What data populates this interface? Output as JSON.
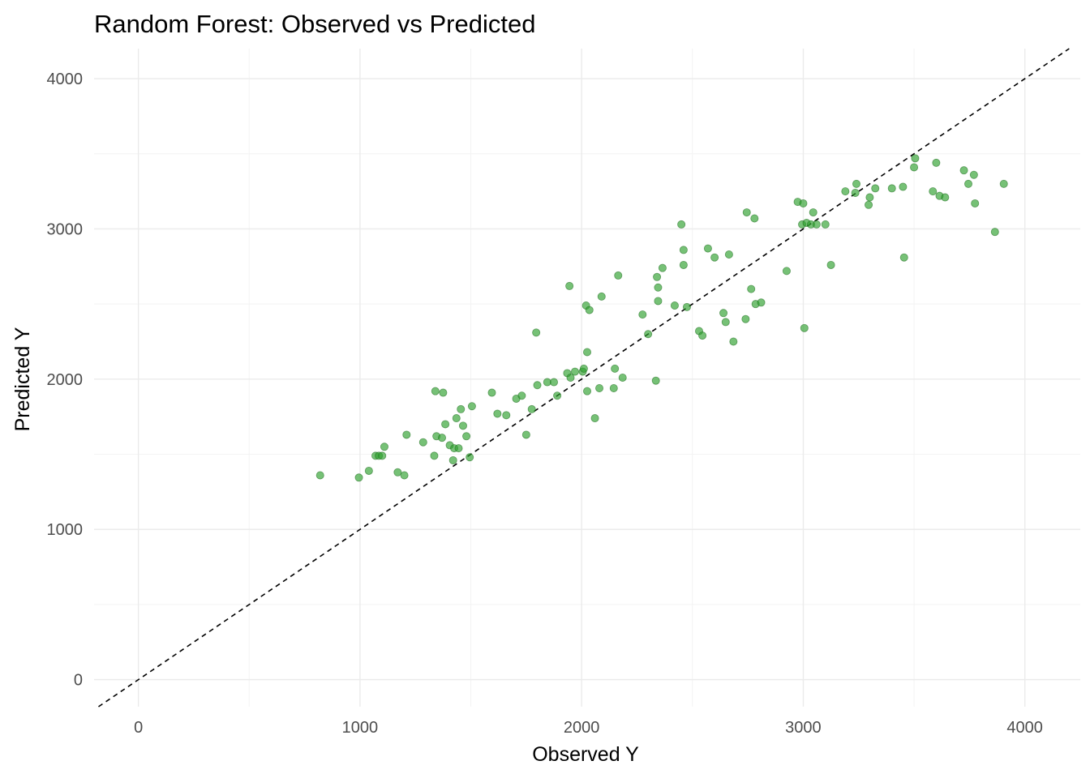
{
  "chart_data": {
    "type": "scatter",
    "title": "Random Forest: Observed vs Predicted",
    "xlabel": "Observed Y",
    "ylabel": "Predicted Y",
    "xlim": [
      -200,
      4250
    ],
    "ylim": [
      -180,
      4200
    ],
    "x_ticks": [
      0,
      1000,
      2000,
      3000,
      4000
    ],
    "y_ticks": [
      0,
      1000,
      2000,
      3000,
      4000
    ],
    "x_tick_labels": [
      "0",
      "1000",
      "2000",
      "3000",
      "4000"
    ],
    "y_tick_labels": [
      "0",
      "1000",
      "2000",
      "3000",
      "4000"
    ],
    "grid": true,
    "reference_line": {
      "slope": 1,
      "intercept": 0,
      "style": "dashed",
      "color": "#000000"
    },
    "point_color": "#2ca02c",
    "points": [
      {
        "x": 820,
        "y": 1360
      },
      {
        "x": 995,
        "y": 1345
      },
      {
        "x": 1040,
        "y": 1390
      },
      {
        "x": 1070,
        "y": 1490
      },
      {
        "x": 1085,
        "y": 1490
      },
      {
        "x": 1100,
        "y": 1490
      },
      {
        "x": 1110,
        "y": 1550
      },
      {
        "x": 1170,
        "y": 1380
      },
      {
        "x": 1200,
        "y": 1360
      },
      {
        "x": 1210,
        "y": 1630
      },
      {
        "x": 1285,
        "y": 1580
      },
      {
        "x": 1335,
        "y": 1490
      },
      {
        "x": 1340,
        "y": 1920
      },
      {
        "x": 1345,
        "y": 1620
      },
      {
        "x": 1370,
        "y": 1610
      },
      {
        "x": 1375,
        "y": 1910
      },
      {
        "x": 1385,
        "y": 1700
      },
      {
        "x": 1405,
        "y": 1560
      },
      {
        "x": 1420,
        "y": 1460
      },
      {
        "x": 1425,
        "y": 1540
      },
      {
        "x": 1435,
        "y": 1740
      },
      {
        "x": 1445,
        "y": 1540
      },
      {
        "x": 1455,
        "y": 1800
      },
      {
        "x": 1465,
        "y": 1690
      },
      {
        "x": 1480,
        "y": 1620
      },
      {
        "x": 1495,
        "y": 1480
      },
      {
        "x": 1505,
        "y": 1820
      },
      {
        "x": 1595,
        "y": 1910
      },
      {
        "x": 1620,
        "y": 1770
      },
      {
        "x": 1660,
        "y": 1760
      },
      {
        "x": 1705,
        "y": 1870
      },
      {
        "x": 1730,
        "y": 1890
      },
      {
        "x": 1750,
        "y": 1630
      },
      {
        "x": 1775,
        "y": 1800
      },
      {
        "x": 1795,
        "y": 2310
      },
      {
        "x": 1800,
        "y": 1960
      },
      {
        "x": 1845,
        "y": 1980
      },
      {
        "x": 1875,
        "y": 1980
      },
      {
        "x": 1890,
        "y": 1890
      },
      {
        "x": 1935,
        "y": 2040
      },
      {
        "x": 1945,
        "y": 2620
      },
      {
        "x": 1950,
        "y": 2010
      },
      {
        "x": 1970,
        "y": 2050
      },
      {
        "x": 2005,
        "y": 2050
      },
      {
        "x": 2010,
        "y": 2070
      },
      {
        "x": 2020,
        "y": 2490
      },
      {
        "x": 2025,
        "y": 1920
      },
      {
        "x": 2025,
        "y": 2180
      },
      {
        "x": 2035,
        "y": 2460
      },
      {
        "x": 2060,
        "y": 1740
      },
      {
        "x": 2080,
        "y": 1940
      },
      {
        "x": 2090,
        "y": 2550
      },
      {
        "x": 2145,
        "y": 1940
      },
      {
        "x": 2150,
        "y": 2070
      },
      {
        "x": 2165,
        "y": 2690
      },
      {
        "x": 2185,
        "y": 2010
      },
      {
        "x": 2275,
        "y": 2430
      },
      {
        "x": 2300,
        "y": 2300
      },
      {
        "x": 2335,
        "y": 1990
      },
      {
        "x": 2340,
        "y": 2680
      },
      {
        "x": 2345,
        "y": 2610
      },
      {
        "x": 2345,
        "y": 2520
      },
      {
        "x": 2365,
        "y": 2740
      },
      {
        "x": 2420,
        "y": 2490
      },
      {
        "x": 2450,
        "y": 3030
      },
      {
        "x": 2460,
        "y": 2860
      },
      {
        "x": 2460,
        "y": 2760
      },
      {
        "x": 2475,
        "y": 2480
      },
      {
        "x": 2530,
        "y": 2320
      },
      {
        "x": 2545,
        "y": 2290
      },
      {
        "x": 2570,
        "y": 2870
      },
      {
        "x": 2600,
        "y": 2810
      },
      {
        "x": 2640,
        "y": 2440
      },
      {
        "x": 2650,
        "y": 2380
      },
      {
        "x": 2665,
        "y": 2830
      },
      {
        "x": 2685,
        "y": 2250
      },
      {
        "x": 2740,
        "y": 2400
      },
      {
        "x": 2745,
        "y": 3110
      },
      {
        "x": 2765,
        "y": 2600
      },
      {
        "x": 2780,
        "y": 3070
      },
      {
        "x": 2785,
        "y": 2500
      },
      {
        "x": 2810,
        "y": 2510
      },
      {
        "x": 2925,
        "y": 2720
      },
      {
        "x": 2975,
        "y": 3180
      },
      {
        "x": 2995,
        "y": 3030
      },
      {
        "x": 3000,
        "y": 3170
      },
      {
        "x": 3005,
        "y": 2340
      },
      {
        "x": 3015,
        "y": 3040
      },
      {
        "x": 3035,
        "y": 3030
      },
      {
        "x": 3045,
        "y": 3110
      },
      {
        "x": 3060,
        "y": 3030
      },
      {
        "x": 3100,
        "y": 3030
      },
      {
        "x": 3125,
        "y": 2760
      },
      {
        "x": 3190,
        "y": 3250
      },
      {
        "x": 3235,
        "y": 3240
      },
      {
        "x": 3240,
        "y": 3300
      },
      {
        "x": 3295,
        "y": 3160
      },
      {
        "x": 3300,
        "y": 3210
      },
      {
        "x": 3325,
        "y": 3270
      },
      {
        "x": 3400,
        "y": 3270
      },
      {
        "x": 3450,
        "y": 3280
      },
      {
        "x": 3455,
        "y": 2810
      },
      {
        "x": 3500,
        "y": 3410
      },
      {
        "x": 3505,
        "y": 3470
      },
      {
        "x": 3585,
        "y": 3250
      },
      {
        "x": 3600,
        "y": 3440
      },
      {
        "x": 3615,
        "y": 3220
      },
      {
        "x": 3640,
        "y": 3210
      },
      {
        "x": 3725,
        "y": 3390
      },
      {
        "x": 3745,
        "y": 3300
      },
      {
        "x": 3770,
        "y": 3360
      },
      {
        "x": 3775,
        "y": 3170
      },
      {
        "x": 3865,
        "y": 2980
      },
      {
        "x": 3905,
        "y": 3300
      }
    ]
  }
}
